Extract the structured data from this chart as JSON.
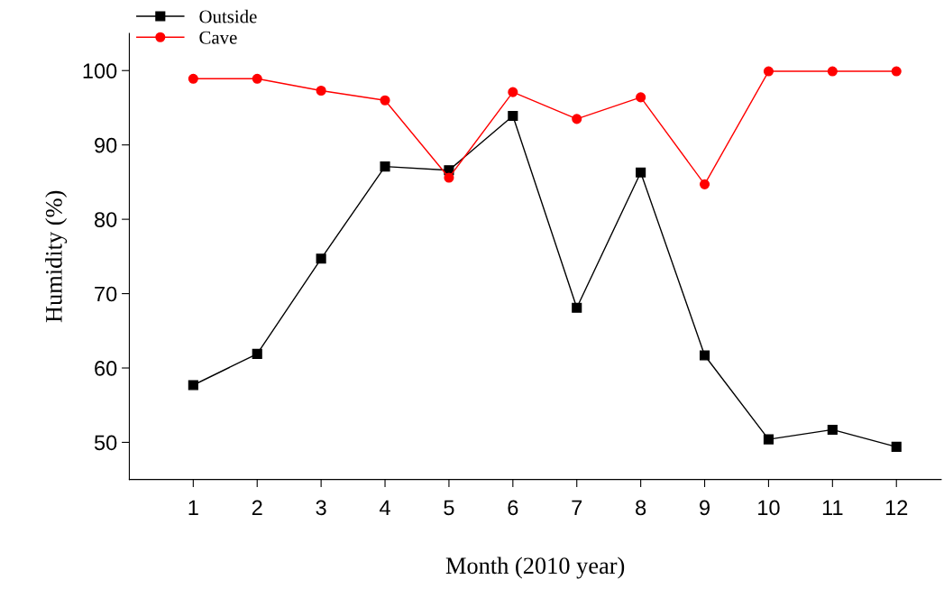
{
  "chart_data": {
    "type": "line",
    "xlabel": "Month (2010 year)",
    "ylabel": "Humidity (%)",
    "x": [
      1,
      2,
      3,
      4,
      5,
      6,
      7,
      8,
      9,
      10,
      11,
      12
    ],
    "series": [
      {
        "name": "Outside",
        "color": "#000000",
        "marker": "square",
        "values": [
          57.7,
          61.9,
          74.7,
          87.1,
          86.6,
          93.9,
          68.1,
          86.3,
          61.7,
          50.4,
          51.7,
          49.4
        ]
      },
      {
        "name": "Cave",
        "color": "#ff0000",
        "marker": "circle",
        "values": [
          98.9,
          98.9,
          97.3,
          96.0,
          85.6,
          97.1,
          93.5,
          96.4,
          84.7,
          99.9,
          99.9,
          99.9
        ]
      }
    ],
    "xlim": [
      0,
      12.7
    ],
    "xticks": [
      1,
      2,
      3,
      4,
      5,
      6,
      7,
      8,
      9,
      10,
      11,
      12
    ],
    "ylim": [
      45,
      105
    ],
    "yticks": [
      50,
      60,
      70,
      80,
      90,
      100
    ],
    "grid": false,
    "legend": "top left",
    "line_style": "solid"
  }
}
